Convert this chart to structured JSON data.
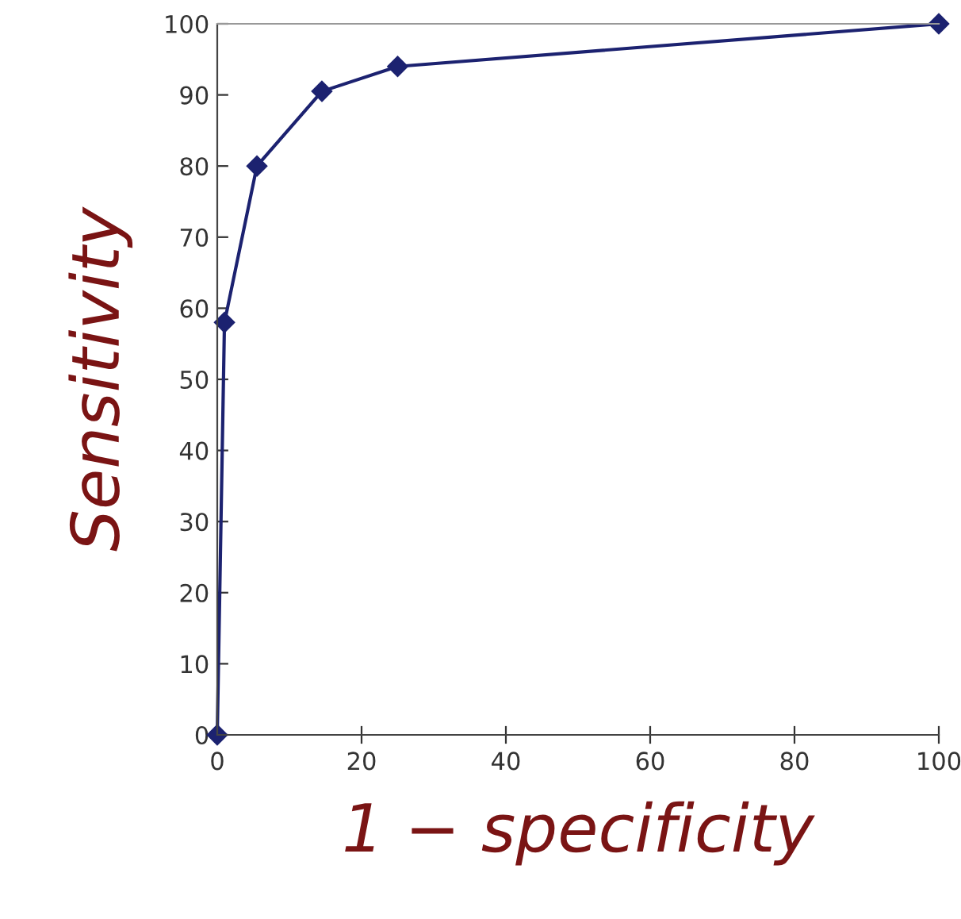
{
  "chart_data": {
    "type": "line",
    "xlabel": "1 − specificity",
    "ylabel": "Sensitivity",
    "x": [
      0,
      1,
      5.5,
      14.5,
      25,
      100
    ],
    "series": [
      {
        "color": "#1c2270",
        "values": [
          0,
          58,
          80,
          90.5,
          94,
          100
        ]
      }
    ],
    "marker": "diamond",
    "line_style": "solid",
    "grid": false,
    "legend": false,
    "xlim": [
      0,
      100
    ],
    "xticks": [
      0,
      20,
      40,
      60,
      80,
      100
    ],
    "ylim": [
      0,
      100
    ],
    "yticks": [
      0,
      10,
      20,
      30,
      40,
      50,
      60,
      70,
      80,
      90,
      100
    ]
  }
}
